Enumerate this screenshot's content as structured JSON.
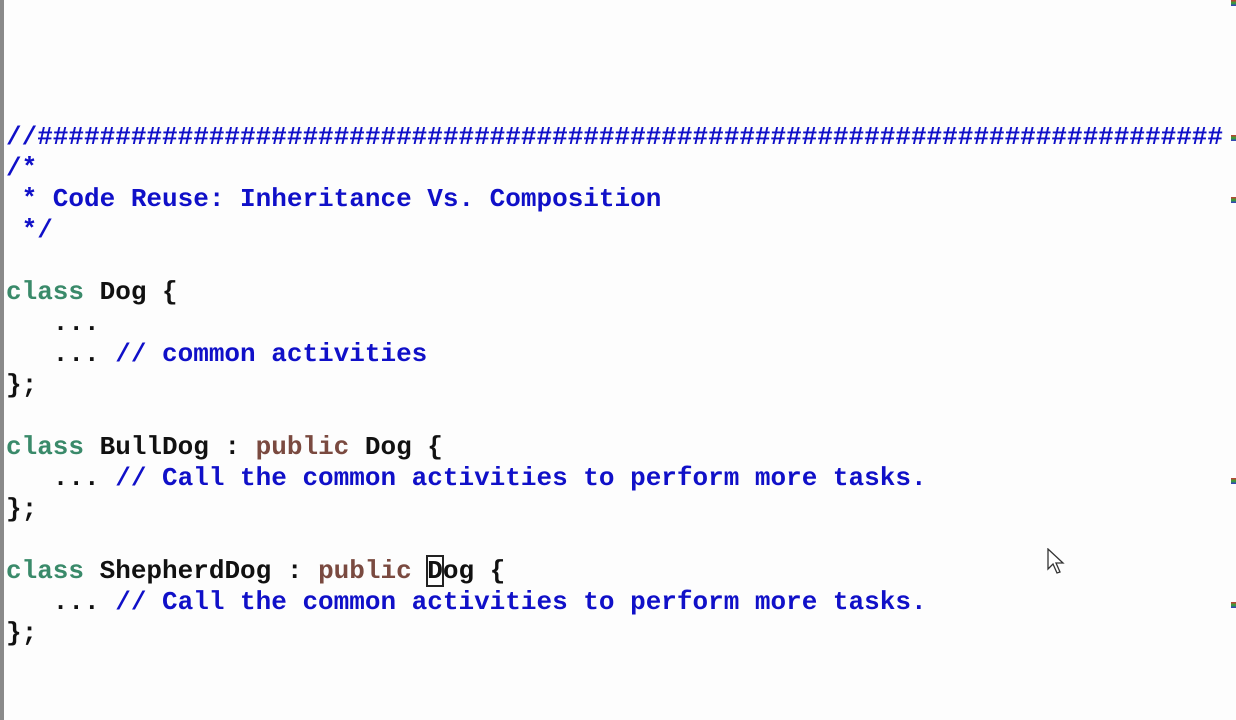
{
  "editor": {
    "colors": {
      "comment": "#1010c8",
      "keyword": "#3a8a6a",
      "modifier": "#7a4a40",
      "text": "#111111"
    },
    "lines": [
      [
        {
          "t": "//############################################################################",
          "c": "comment"
        }
      ],
      [
        {
          "t": "/*",
          "c": "comment"
        }
      ],
      [
        {
          "t": " * Code Reuse: Inheritance Vs. Composition",
          "c": "comment"
        }
      ],
      [
        {
          "t": " */",
          "c": "comment"
        }
      ],
      [],
      [
        {
          "t": "class",
          "c": "keyword"
        },
        {
          "t": " Dog {",
          "c": "text"
        }
      ],
      [
        {
          "t": "   ...",
          "c": "text"
        }
      ],
      [
        {
          "t": "   ... ",
          "c": "text"
        },
        {
          "t": "// common activities",
          "c": "comment"
        }
      ],
      [
        {
          "t": "};",
          "c": "text"
        }
      ],
      [],
      [
        {
          "t": "class",
          "c": "keyword"
        },
        {
          "t": " BullDog : ",
          "c": "text"
        },
        {
          "t": "public",
          "c": "modifier"
        },
        {
          "t": " Dog {",
          "c": "text"
        }
      ],
      [
        {
          "t": "   ... ",
          "c": "text"
        },
        {
          "t": "// Call the common activities to perform more tasks.",
          "c": "comment"
        }
      ],
      [
        {
          "t": "};",
          "c": "text"
        }
      ],
      [],
      [
        {
          "t": "class",
          "c": "keyword"
        },
        {
          "t": " ShepherdDog : ",
          "c": "text"
        },
        {
          "t": "public",
          "c": "modifier"
        },
        {
          "t": " ",
          "c": "text"
        },
        {
          "t": "D",
          "c": "text",
          "caret": true
        },
        {
          "t": "og {",
          "c": "text"
        }
      ],
      [
        {
          "t": "   ... ",
          "c": "text"
        },
        {
          "t": "// Call the common activities to perform more tasks.",
          "c": "comment"
        }
      ],
      [
        {
          "t": "};",
          "c": "text"
        }
      ]
    ]
  },
  "icons": {
    "mouse_cursor": "arrow-pointer-icon"
  }
}
